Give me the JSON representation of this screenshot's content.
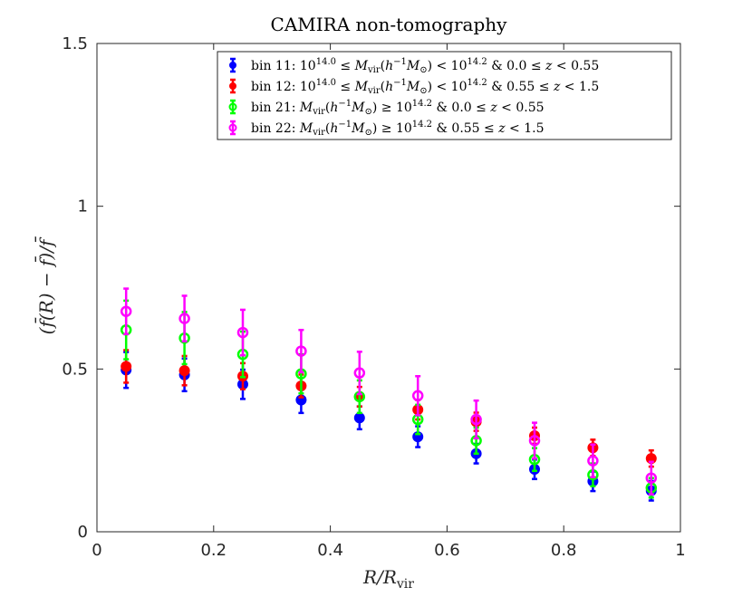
{
  "chart_data": {
    "type": "scatter",
    "title": "CAMIRA non-tomography",
    "xlabel": "R/R_vir",
    "ylabel": "(f̄(R) − f̄)/f̄",
    "xlim": [
      0,
      1
    ],
    "ylim": [
      0,
      1.5
    ],
    "xticks": [
      "0",
      "0.2",
      "0.4",
      "0.6",
      "0.8",
      "1"
    ],
    "yticks": [
      "0",
      "0.5",
      "1",
      "1.5"
    ],
    "legend_position": "top-right",
    "x": [
      0.05,
      0.15,
      0.25,
      0.35,
      0.45,
      0.55,
      0.65,
      0.75,
      0.85,
      0.95
    ],
    "series": [
      {
        "name": "bin 11: 10^14.0 ≤ M_vir(h⁻¹M⊙) < 10^14.2 & 0.0 ≤ z < 0.55",
        "color": "#0000ff",
        "marker": "filled",
        "values": [
          0.497,
          0.482,
          0.453,
          0.405,
          0.35,
          0.292,
          0.24,
          0.192,
          0.155,
          0.126
        ],
        "errors": [
          0.055,
          0.05,
          0.045,
          0.04,
          0.035,
          0.032,
          0.03,
          0.03,
          0.03,
          0.03
        ]
      },
      {
        "name": "bin 12: 10^14.0 ≤ M_vir(h⁻¹M⊙) < 10^14.2 & 0.55 ≤ z < 1.5",
        "color": "#ff0000",
        "marker": "filled",
        "values": [
          0.508,
          0.495,
          0.478,
          0.448,
          0.415,
          0.375,
          0.338,
          0.295,
          0.258,
          0.225
        ],
        "errors": [
          0.05,
          0.045,
          0.04,
          0.035,
          0.03,
          0.03,
          0.028,
          0.025,
          0.025,
          0.025
        ]
      },
      {
        "name": "bin 21: M_vir(h⁻¹M⊙) ≥ 10^14.2 & 0.0 ≤ z < 0.55",
        "color": "#00ff00",
        "marker": "open",
        "values": [
          0.62,
          0.595,
          0.545,
          0.485,
          0.415,
          0.345,
          0.28,
          0.222,
          0.175,
          0.135
        ],
        "errors": [
          0.09,
          0.08,
          0.07,
          0.06,
          0.05,
          0.045,
          0.04,
          0.035,
          0.035,
          0.03
        ]
      },
      {
        "name": "bin 22: M_vir(h⁻¹M⊙) ≥ 10^14.2 & 0.55 ≤ z < 1.5",
        "color": "#ff00ff",
        "marker": "open",
        "values": [
          0.677,
          0.655,
          0.612,
          0.555,
          0.488,
          0.418,
          0.345,
          0.28,
          0.218,
          0.165
        ],
        "errors": [
          0.07,
          0.07,
          0.07,
          0.065,
          0.065,
          0.06,
          0.058,
          0.055,
          0.05,
          0.05
        ]
      }
    ]
  }
}
